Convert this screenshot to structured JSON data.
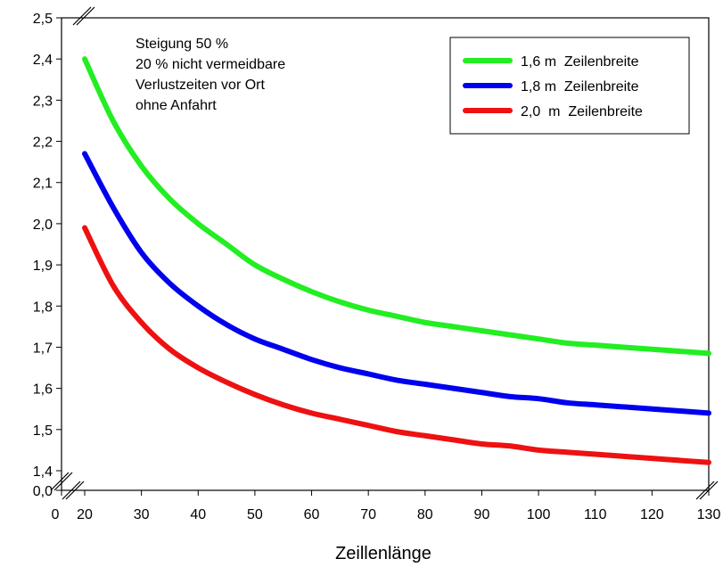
{
  "chart_data": {
    "type": "line",
    "title": "",
    "xlabel": "Zeillenlänge",
    "ylabel": "",
    "xlim": [
      0,
      130
    ],
    "ylim": [
      1.4,
      2.5
    ],
    "x_break": true,
    "y_break": true,
    "x_break_label": "0",
    "y_break_label": "0,0",
    "x_ticks": [
      "20",
      "30",
      "40",
      "50",
      "60",
      "70",
      "80",
      "90",
      "100",
      "110",
      "120",
      "130"
    ],
    "y_ticks": [
      "1,4",
      "1,5",
      "1,6",
      "1,7",
      "1,8",
      "1,9",
      "2,0",
      "2,1",
      "2,2",
      "2,3",
      "2,4",
      "2,5"
    ],
    "annotation": [
      "Steigung 50 %",
      "20 % nicht vermeidbare",
      "Verlustzeiten vor Ort",
      "ohne Anfahrt"
    ],
    "legend_position": "top-right",
    "grid": false,
    "x": [
      20,
      25,
      30,
      35,
      40,
      45,
      50,
      55,
      60,
      65,
      70,
      75,
      80,
      85,
      90,
      95,
      100,
      105,
      110,
      115,
      120,
      125,
      130
    ],
    "series": [
      {
        "name": "1,6 m  Zeilenbreite",
        "color": "#22ee22",
        "values": [
          2.4,
          2.25,
          2.14,
          2.06,
          2.0,
          1.95,
          1.9,
          1.865,
          1.835,
          1.81,
          1.79,
          1.775,
          1.76,
          1.75,
          1.74,
          1.73,
          1.72,
          1.71,
          1.705,
          1.7,
          1.695,
          1.69,
          1.685
        ]
      },
      {
        "name": "1,8 m  Zeilenbreite",
        "color": "#0000ee",
        "values": [
          2.17,
          2.04,
          1.93,
          1.855,
          1.8,
          1.755,
          1.72,
          1.695,
          1.67,
          1.65,
          1.635,
          1.62,
          1.61,
          1.6,
          1.59,
          1.58,
          1.575,
          1.565,
          1.56,
          1.555,
          1.55,
          1.545,
          1.54
        ]
      },
      {
        "name": "2,0  m  Zeilenbreite",
        "color": "#ee1111",
        "values": [
          1.99,
          1.85,
          1.76,
          1.695,
          1.65,
          1.615,
          1.585,
          1.56,
          1.54,
          1.525,
          1.51,
          1.495,
          1.485,
          1.475,
          1.465,
          1.46,
          1.45,
          1.445,
          1.44,
          1.435,
          1.43,
          1.425,
          1.42
        ]
      }
    ]
  }
}
